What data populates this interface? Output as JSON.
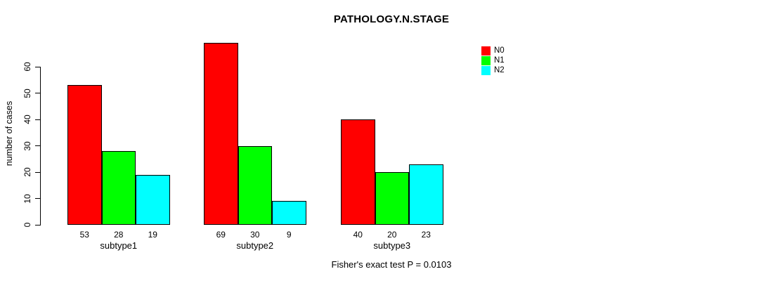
{
  "title": "PATHOLOGY.N.STAGE",
  "annotation": "Fisher's exact test P = 0.0103",
  "chart_data": {
    "type": "bar",
    "title": "PATHOLOGY.N.STAGE",
    "categories": [
      "subtype1",
      "subtype2",
      "subtype3"
    ],
    "series": [
      {
        "name": "N0",
        "color": "#ff0000",
        "values": [
          53,
          69,
          40
        ]
      },
      {
        "name": "N1",
        "color": "#00ff00",
        "values": [
          28,
          30,
          20
        ]
      },
      {
        "name": "N2",
        "color": "#00ffff",
        "values": [
          19,
          9,
          23
        ]
      }
    ],
    "xlabel": "",
    "ylabel": "number of cases",
    "yticks": [
      0,
      10,
      20,
      30,
      40,
      50,
      60
    ],
    "ylim": [
      0,
      60
    ],
    "grid": false,
    "legend_position": "top-right",
    "bar_border_color": "#000000",
    "bar_value_labels_shown": true,
    "annotation": "Fisher's exact test P = 0.0103"
  },
  "legend": {
    "items": [
      {
        "label": "N0",
        "color": "#ff0000"
      },
      {
        "label": "N1",
        "color": "#00ff00"
      },
      {
        "label": "N2",
        "color": "#00ffff"
      }
    ]
  }
}
